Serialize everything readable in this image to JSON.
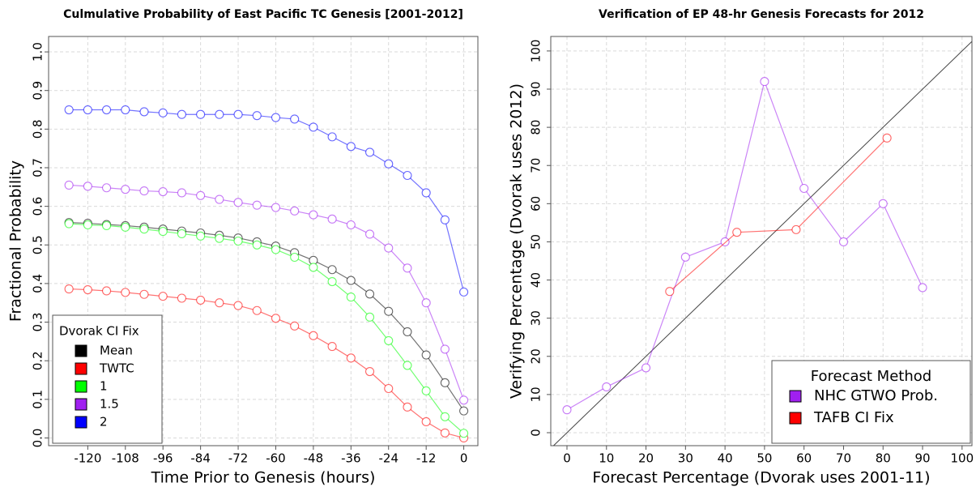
{
  "chart_data": [
    {
      "type": "line",
      "title": "Culmulative Probability of East Pacific TC Genesis    [2001-2012]",
      "x_label": "Time Prior to Genesis (hours)",
      "y_label": "Fractional Probability",
      "x": [
        -126,
        -120,
        -114,
        -108,
        -102,
        -96,
        -90,
        -84,
        -78,
        -72,
        -66,
        -60,
        -54,
        -48,
        -42,
        -36,
        -30,
        -24,
        -18,
        -12,
        -6,
        0
      ],
      "series": [
        {
          "name": "Mean",
          "color": "#000000",
          "values": [
            0.558,
            0.556,
            0.553,
            0.55,
            0.546,
            0.541,
            0.536,
            0.531,
            0.525,
            0.518,
            0.508,
            0.497,
            0.48,
            0.46,
            0.436,
            0.408,
            0.373,
            0.328,
            0.275,
            0.215,
            0.143,
            0.07
          ]
        },
        {
          "name": "TWTC",
          "color": "#ff0000",
          "values": [
            0.386,
            0.384,
            0.381,
            0.377,
            0.372,
            0.367,
            0.362,
            0.357,
            0.35,
            0.343,
            0.33,
            0.31,
            0.29,
            0.265,
            0.237,
            0.207,
            0.172,
            0.128,
            0.08,
            0.042,
            0.013,
            0.0
          ]
        },
        {
          "name": "1",
          "color": "#00ff00",
          "values": [
            0.555,
            0.552,
            0.55,
            0.546,
            0.541,
            0.535,
            0.529,
            0.523,
            0.517,
            0.51,
            0.5,
            0.488,
            0.468,
            0.442,
            0.405,
            0.365,
            0.313,
            0.252,
            0.188,
            0.122,
            0.055,
            0.012
          ]
        },
        {
          "name": "1.5",
          "color": "#a020f0",
          "values": [
            0.655,
            0.652,
            0.648,
            0.644,
            0.64,
            0.638,
            0.635,
            0.628,
            0.618,
            0.61,
            0.603,
            0.597,
            0.588,
            0.578,
            0.567,
            0.552,
            0.528,
            0.492,
            0.44,
            0.35,
            0.23,
            0.098
          ]
        },
        {
          "name": "2",
          "color": "#0000ff",
          "values": [
            0.85,
            0.85,
            0.85,
            0.85,
            0.845,
            0.842,
            0.838,
            0.838,
            0.838,
            0.838,
            0.835,
            0.83,
            0.826,
            0.805,
            0.78,
            0.755,
            0.74,
            0.71,
            0.68,
            0.635,
            0.565,
            0.378
          ]
        }
      ],
      "xlim": [
        -132.5,
        4.5
      ],
      "ylim": [
        -0.02,
        1.04
      ],
      "xticks": [
        -120,
        -108,
        -96,
        -84,
        -72,
        -60,
        -48,
        -36,
        -24,
        -12,
        0
      ],
      "yticks": [
        {
          "value": 0,
          "label": "0.0"
        },
        0.1,
        0.2,
        0.3,
        0.4,
        0.5,
        0.6,
        0.7,
        0.8,
        0.9,
        {
          "value": 1,
          "label": "1.0"
        }
      ],
      "grid": true,
      "legend_title": "Dvorak CI Fix",
      "legend": "bottom-left"
    },
    {
      "type": "line",
      "title": "Verification of EP 48-hr Genesis Forecasts for 2012",
      "x_label": "Forecast Percentage (Dvorak uses 2001-11)",
      "y_label": "Verifying Percentage (Dvorak uses 2012)",
      "series": [
        {
          "name": "NHC GTWO Prob.",
          "color": "#a020f0",
          "x": [
            0,
            10,
            20,
            30,
            40,
            50,
            60,
            70,
            80,
            90
          ],
          "values": [
            6,
            12,
            17,
            46,
            50,
            92,
            64,
            50,
            60,
            38
          ]
        },
        {
          "name": "TAFB CI Fix",
          "color": "#ff0000",
          "x": [
            26,
            43,
            58,
            81
          ],
          "values": [
            37,
            52.5,
            53.2,
            77.2
          ]
        }
      ],
      "xlim": [
        -4.1,
        102.5
      ],
      "ylim": [
        -3.4,
        103.8
      ],
      "xticks": [
        0,
        10,
        20,
        30,
        40,
        50,
        60,
        70,
        80,
        90,
        100
      ],
      "yticks": [
        0,
        10,
        20,
        30,
        40,
        50,
        60,
        70,
        80,
        90,
        100
      ],
      "grid": true,
      "diagonal": true,
      "legend_title": "Forecast Method",
      "legend": "bottom-right"
    }
  ]
}
